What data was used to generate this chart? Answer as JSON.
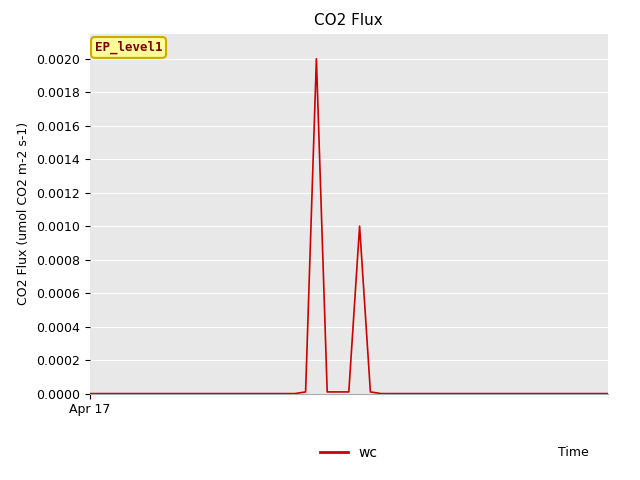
{
  "title": "CO2 Flux",
  "xlabel": "Time",
  "ylabel": "CO2 Flux (umol CO2 m-2 s-1)",
  "line_color": "#cc0000",
  "line_label": "wc",
  "annotation_label": "EP_level1",
  "fig_bg_color": "#ffffff",
  "plot_bg_color": "#e8e8e8",
  "ylim": [
    0,
    0.00215
  ],
  "yticks": [
    0.0,
    0.0002,
    0.0004,
    0.0006,
    0.0008,
    0.001,
    0.0012,
    0.0014,
    0.0016,
    0.0018,
    0.002
  ],
  "x_values": [
    0,
    1,
    2,
    3,
    4,
    5,
    6,
    7,
    8,
    9,
    10,
    11,
    12,
    13,
    14,
    15,
    16,
    17,
    18,
    19,
    20,
    21,
    22,
    23,
    24,
    25,
    26,
    27,
    28,
    29,
    30,
    31,
    32,
    33,
    34,
    35,
    36,
    37,
    38,
    39,
    40,
    41,
    42,
    43,
    44,
    45,
    46,
    47,
    48
  ],
  "y_values": [
    0.0,
    0.0,
    0.0,
    0.0,
    0.0,
    0.0,
    0.0,
    0.0,
    0.0,
    0.0,
    0.0,
    0.0,
    0.0,
    0.0,
    0.0,
    0.0,
    0.0,
    0.0,
    0.0,
    0.0,
    1e-05,
    0.002,
    1e-05,
    1e-05,
    1e-05,
    0.001,
    1e-05,
    0.0,
    0.0,
    0.0,
    0.0,
    0.0,
    0.0,
    0.0,
    0.0,
    0.0,
    0.0,
    0.0,
    0.0,
    0.0,
    0.0,
    0.0,
    0.0,
    0.0,
    0.0,
    0.0,
    0.0,
    0.0,
    0.0
  ],
  "xtick_pos": 0,
  "xtick_label": "Apr 17",
  "grid_color": "#ffffff",
  "title_fontsize": 11,
  "axis_fontsize": 9,
  "tick_fontsize": 9,
  "annotation_fontsize": 9,
  "annotation_color": "#800000",
  "annotation_bg": "#ffff99",
  "annotation_edge": "#ccaa00"
}
